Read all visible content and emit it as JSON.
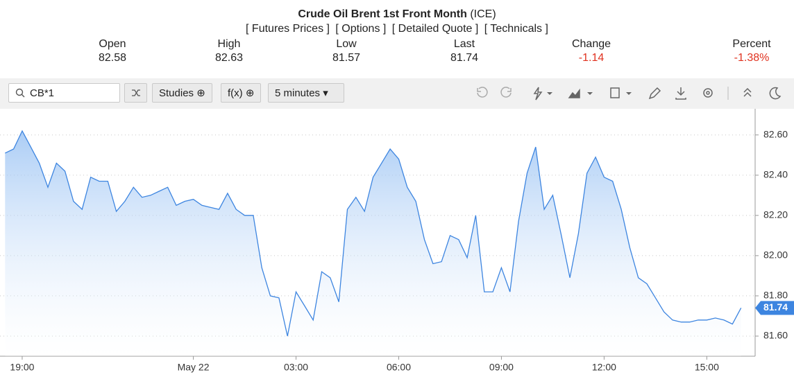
{
  "header": {
    "title": "Crude Oil Brent 1st Front Month",
    "exchange": "(ICE)",
    "links": [
      "[ Futures Prices ]",
      "[ Options ]",
      "[ Detailed Quote ]",
      "[ Technicals ]"
    ],
    "quotes": [
      {
        "label": "Open",
        "value": "82.58"
      },
      {
        "label": "High",
        "value": "82.63"
      },
      {
        "label": "Low",
        "value": "81.57"
      },
      {
        "label": "Last",
        "value": "81.74"
      },
      {
        "label": "Change",
        "value": "-1.14"
      },
      {
        "label": "Percent",
        "value": "-1.38%"
      }
    ]
  },
  "toolbar": {
    "symbol": "CB*1",
    "studies": "Studies",
    "function": "f(x)",
    "interval": "5 minutes"
  },
  "chart_data": {
    "type": "area",
    "color": "#3d85e0",
    "grid": true,
    "categories": [
      null,
      null,
      "19:00",
      null,
      null,
      null,
      null,
      null,
      null,
      null,
      null,
      null,
      null,
      null,
      null,
      null,
      null,
      null,
      null,
      null,
      null,
      null,
      "May 22",
      null,
      null,
      null,
      null,
      null,
      null,
      null,
      null,
      null,
      null,
      null,
      "03:00",
      null,
      null,
      null,
      null,
      null,
      null,
      null,
      null,
      null,
      null,
      null,
      "06:00",
      null,
      null,
      null,
      null,
      null,
      null,
      null,
      null,
      null,
      null,
      null,
      "09:00",
      null,
      null,
      null,
      null,
      null,
      null,
      null,
      null,
      null,
      null,
      null,
      "12:00",
      null,
      null,
      null,
      null,
      null,
      null,
      null,
      null,
      null,
      null,
      null,
      "15:00",
      null,
      null,
      null,
      null
    ],
    "values": [
      82.51,
      82.53,
      82.62,
      82.54,
      82.46,
      82.34,
      82.46,
      82.42,
      82.27,
      82.23,
      82.39,
      82.37,
      82.37,
      82.22,
      82.27,
      82.34,
      82.29,
      82.3,
      82.32,
      82.34,
      82.25,
      82.27,
      82.28,
      82.25,
      82.24,
      82.23,
      82.31,
      82.23,
      82.2,
      82.2,
      81.94,
      81.8,
      81.79,
      81.6,
      81.82,
      81.75,
      81.68,
      81.92,
      81.89,
      81.77,
      82.23,
      82.29,
      82.22,
      82.39,
      82.46,
      82.53,
      82.48,
      82.34,
      82.27,
      82.08,
      81.96,
      81.97,
      82.1,
      82.08,
      81.99,
      82.2,
      81.82,
      81.82,
      81.94,
      81.82,
      82.17,
      82.41,
      82.54,
      82.23,
      82.3,
      82.1,
      81.89,
      82.11,
      82.41,
      82.49,
      82.39,
      82.37,
      82.23,
      82.04,
      81.89,
      81.86,
      81.79,
      81.72,
      81.68,
      81.67,
      81.67,
      81.68,
      81.68,
      81.69,
      81.68,
      81.66,
      81.74
    ],
    "ylim": [
      81.5,
      82.73
    ],
    "yticks": [
      {
        "value": 81.6,
        "label": "81.60"
      },
      {
        "value": 81.8,
        "label": "81.80"
      },
      {
        "value": 82.0,
        "label": "82.00"
      },
      {
        "value": 82.2,
        "label": "82.20"
      },
      {
        "value": 82.4,
        "label": "82.40"
      },
      {
        "value": 82.6,
        "label": "82.60"
      }
    ]
  }
}
